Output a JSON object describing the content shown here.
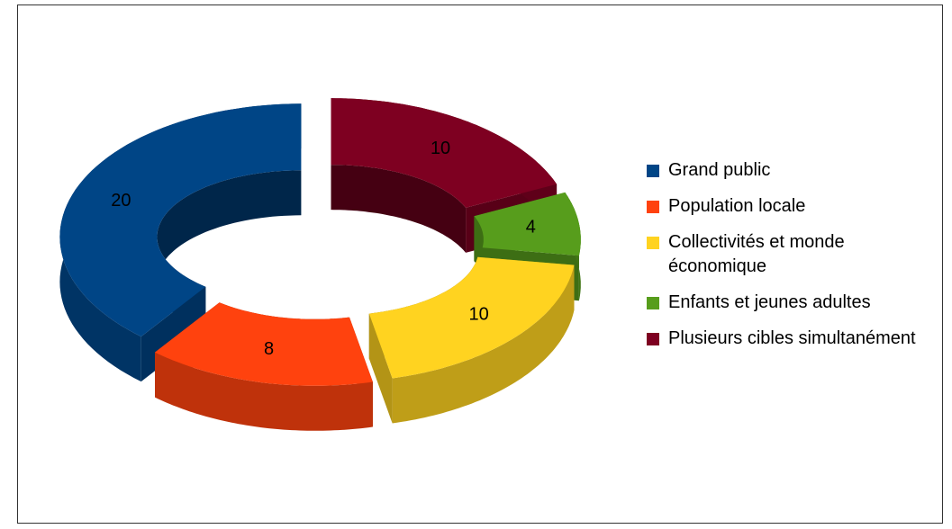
{
  "chart_data": {
    "type": "donut3d",
    "categories": [
      "Grand public",
      "Population locale",
      "Collectivités et monde économique",
      "Enfants et jeunes adultes",
      "Plusieurs cibles simultanément"
    ],
    "values": [
      20,
      8,
      10,
      4,
      10
    ],
    "colors": [
      "#004586",
      "#ff420e",
      "#ffd320",
      "#579d1c",
      "#7e0021"
    ],
    "legend": "right"
  }
}
